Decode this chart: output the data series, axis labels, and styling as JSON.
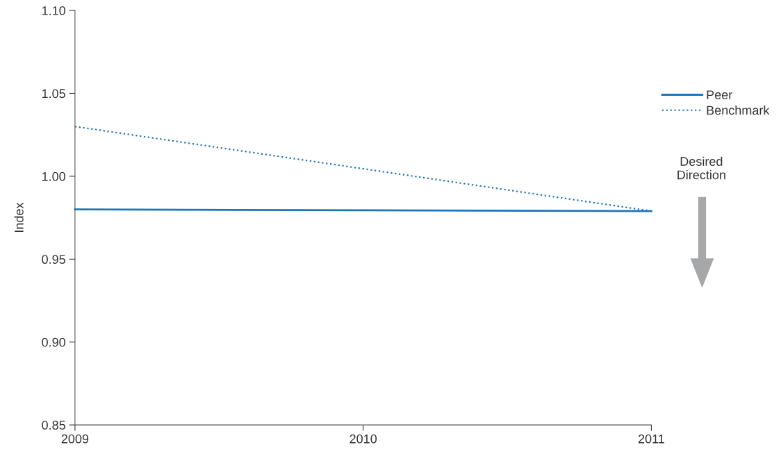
{
  "chart_data": {
    "type": "line",
    "ylabel": "Index",
    "x": [
      2009,
      2010,
      2011
    ],
    "series": [
      {
        "name": "Peer",
        "color": "#1a75bb",
        "values": [
          0.98,
          0.9795,
          0.979
        ],
        "line_style": "solid"
      },
      {
        "name": "Benchmark",
        "color": "#1a75bb",
        "values": [
          1.03,
          1.0045,
          0.979
        ],
        "line_style": "dotted"
      }
    ],
    "xlim": [
      2009,
      2011
    ],
    "xticks": [
      2009,
      2010,
      2011
    ],
    "ylim": [
      0.85,
      1.1
    ],
    "yticks": [
      {
        "value": 0.85,
        "label": "0.85"
      },
      {
        "value": 0.9,
        "label": "0.90"
      },
      {
        "value": 0.95,
        "label": "0.95"
      },
      {
        "value": 1.0,
        "label": "1.00"
      },
      {
        "value": 1.05,
        "label": "1.05"
      },
      {
        "value": 1.1,
        "label": "1.10"
      }
    ],
    "grid": false,
    "legend": "top right",
    "marker": "none",
    "annotations": [
      "Desired\nDirection"
    ]
  }
}
